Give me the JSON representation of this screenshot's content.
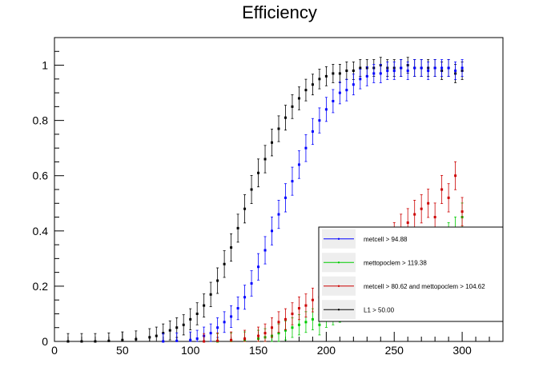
{
  "chart_data": {
    "type": "scatter",
    "title": "Efficiency",
    "xlabel": "",
    "ylabel": "",
    "xlim": [
      0,
      330
    ],
    "ylim": [
      0,
      1.1
    ],
    "x_ticks": [
      "0",
      "50",
      "100",
      "150",
      "200",
      "250",
      "300"
    ],
    "y_ticks": [
      "0",
      "0.2",
      "0.4",
      "0.6",
      "0.8",
      "1"
    ],
    "grid": false,
    "legend_position": "bottom-right",
    "series": [
      {
        "name": "L1 >  50.00",
        "color": "#000000",
        "x": [
          10,
          20,
          30,
          40,
          50,
          60,
          70,
          75,
          80,
          85,
          90,
          95,
          100,
          105,
          110,
          115,
          120,
          125,
          130,
          135,
          140,
          145,
          150,
          155,
          160,
          165,
          170,
          175,
          180,
          185,
          190,
          195,
          200,
          205,
          210,
          215,
          220,
          225,
          230,
          235,
          240,
          245,
          250,
          255,
          260,
          265,
          270,
          275,
          280,
          285,
          290,
          295,
          300
        ],
        "y": [
          0.0,
          0.0,
          0.0,
          0.002,
          0.005,
          0.008,
          0.015,
          0.02,
          0.03,
          0.04,
          0.05,
          0.06,
          0.08,
          0.1,
          0.13,
          0.17,
          0.22,
          0.28,
          0.34,
          0.41,
          0.48,
          0.55,
          0.61,
          0.66,
          0.72,
          0.77,
          0.81,
          0.85,
          0.88,
          0.91,
          0.93,
          0.95,
          0.96,
          0.97,
          0.97,
          0.98,
          0.98,
          0.99,
          0.99,
          0.99,
          1.0,
          0.99,
          0.99,
          0.99,
          1.0,
          0.99,
          0.99,
          0.99,
          0.99,
          0.98,
          0.99,
          0.97,
          0.98
        ]
      },
      {
        "name": "metcell >  94.88",
        "color": "#0000ff",
        "x": [
          80,
          90,
          100,
          105,
          110,
          115,
          120,
          125,
          130,
          135,
          140,
          145,
          150,
          155,
          160,
          165,
          170,
          175,
          180,
          185,
          190,
          195,
          200,
          205,
          210,
          215,
          220,
          225,
          230,
          235,
          240,
          245,
          250,
          255,
          260,
          265,
          270,
          275,
          280,
          285,
          290,
          295,
          300
        ],
        "y": [
          0.0,
          0.002,
          0.005,
          0.01,
          0.02,
          0.03,
          0.05,
          0.07,
          0.09,
          0.12,
          0.16,
          0.21,
          0.27,
          0.33,
          0.4,
          0.46,
          0.52,
          0.58,
          0.64,
          0.7,
          0.76,
          0.8,
          0.84,
          0.87,
          0.9,
          0.91,
          0.93,
          0.95,
          0.96,
          0.97,
          0.97,
          0.98,
          0.98,
          0.99,
          0.98,
          0.99,
          0.99,
          0.98,
          0.99,
          0.99,
          0.99,
          0.98,
          0.99
        ]
      },
      {
        "name": "mettopoclem >  119.38",
        "color": "#00cc00",
        "x": [
          120,
          130,
          140,
          150,
          155,
          160,
          165,
          170,
          175,
          180,
          185,
          190,
          195,
          200,
          205,
          210,
          215,
          220,
          225,
          230,
          235,
          240,
          245,
          250,
          255,
          260,
          265,
          270,
          275,
          280,
          285,
          290,
          295,
          300
        ],
        "y": [
          0.0,
          0.002,
          0.005,
          0.01,
          0.015,
          0.02,
          0.03,
          0.04,
          0.05,
          0.06,
          0.07,
          0.08,
          0.06,
          0.09,
          0.1,
          0.11,
          0.12,
          0.13,
          0.14,
          0.15,
          0.16,
          0.17,
          0.18,
          0.2,
          0.22,
          0.24,
          0.25,
          0.27,
          0.3,
          0.32,
          0.35,
          0.38,
          0.4,
          0.45
        ]
      },
      {
        "name": "metcell >  80.62 and mettopoclem >  104.62",
        "color": "#cc0000",
        "x": [
          110,
          120,
          130,
          140,
          150,
          155,
          160,
          165,
          170,
          175,
          180,
          185,
          190,
          195,
          200,
          205,
          210,
          215,
          220,
          225,
          230,
          235,
          240,
          245,
          250,
          255,
          260,
          265,
          270,
          275,
          280,
          285,
          290,
          295,
          300
        ],
        "y": [
          0.0,
          0.002,
          0.005,
          0.01,
          0.02,
          0.03,
          0.05,
          0.07,
          0.08,
          0.1,
          0.12,
          0.13,
          0.15,
          0.16,
          0.18,
          0.2,
          0.21,
          0.23,
          0.25,
          0.27,
          0.29,
          0.31,
          0.34,
          0.36,
          0.38,
          0.41,
          0.43,
          0.46,
          0.48,
          0.5,
          0.45,
          0.55,
          0.52,
          0.6,
          0.47
        ]
      }
    ]
  }
}
